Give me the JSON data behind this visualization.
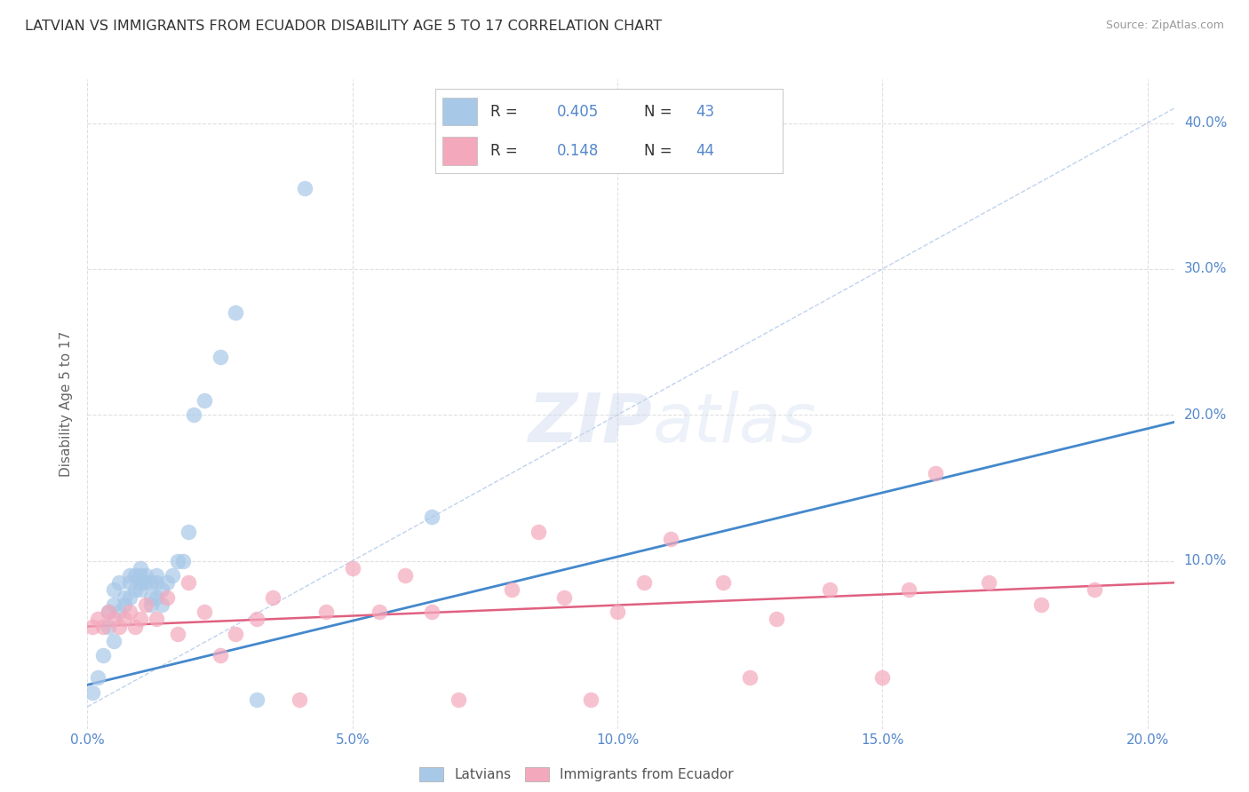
{
  "title": "LATVIAN VS IMMIGRANTS FROM ECUADOR DISABILITY AGE 5 TO 17 CORRELATION CHART",
  "source": "Source: ZipAtlas.com",
  "ylabel": "Disability Age 5 to 17",
  "xmin": 0.0,
  "xmax": 0.205,
  "ymin": -0.015,
  "ymax": 0.43,
  "blue_color": "#a8c8e8",
  "pink_color": "#f4a8bc",
  "blue_line_color": "#4488cc",
  "pink_line_color": "#e06080",
  "axis_color": "#5588cc",
  "blue_scatter_x": [
    0.001,
    0.002,
    0.003,
    0.004,
    0.004,
    0.005,
    0.005,
    0.005,
    0.006,
    0.006,
    0.007,
    0.007,
    0.008,
    0.008,
    0.008,
    0.009,
    0.009,
    0.01,
    0.01,
    0.01,
    0.01,
    0.011,
    0.011,
    0.012,
    0.012,
    0.012,
    0.013,
    0.013,
    0.013,
    0.014,
    0.014,
    0.015,
    0.016,
    0.017,
    0.018,
    0.019,
    0.02,
    0.022,
    0.025,
    0.028,
    0.032,
    0.041,
    0.065
  ],
  "blue_scatter_y": [
    0.01,
    0.02,
    0.035,
    0.055,
    0.065,
    0.045,
    0.07,
    0.08,
    0.065,
    0.085,
    0.07,
    0.075,
    0.075,
    0.085,
    0.09,
    0.08,
    0.09,
    0.08,
    0.085,
    0.09,
    0.095,
    0.085,
    0.09,
    0.07,
    0.075,
    0.085,
    0.075,
    0.085,
    0.09,
    0.07,
    0.08,
    0.085,
    0.09,
    0.1,
    0.1,
    0.12,
    0.2,
    0.21,
    0.24,
    0.27,
    0.005,
    0.355,
    0.13
  ],
  "pink_scatter_x": [
    0.001,
    0.002,
    0.003,
    0.004,
    0.005,
    0.006,
    0.007,
    0.008,
    0.009,
    0.01,
    0.011,
    0.013,
    0.015,
    0.017,
    0.019,
    0.022,
    0.025,
    0.028,
    0.032,
    0.035,
    0.04,
    0.045,
    0.05,
    0.055,
    0.06,
    0.065,
    0.07,
    0.08,
    0.085,
    0.09,
    0.095,
    0.1,
    0.105,
    0.11,
    0.12,
    0.125,
    0.13,
    0.14,
    0.15,
    0.155,
    0.16,
    0.17,
    0.18,
    0.19
  ],
  "pink_scatter_y": [
    0.055,
    0.06,
    0.055,
    0.065,
    0.06,
    0.055,
    0.06,
    0.065,
    0.055,
    0.06,
    0.07,
    0.06,
    0.075,
    0.05,
    0.085,
    0.065,
    0.035,
    0.05,
    0.06,
    0.075,
    0.005,
    0.065,
    0.095,
    0.065,
    0.09,
    0.065,
    0.005,
    0.08,
    0.12,
    0.075,
    0.005,
    0.065,
    0.085,
    0.115,
    0.085,
    0.02,
    0.06,
    0.08,
    0.02,
    0.08,
    0.16,
    0.085,
    0.07,
    0.08
  ],
  "blue_line_x": [
    0.0,
    0.205
  ],
  "blue_line_y": [
    0.015,
    0.195
  ],
  "pink_line_x": [
    0.0,
    0.205
  ],
  "pink_line_y": [
    0.055,
    0.085
  ],
  "dashed_line_x": [
    0.0,
    0.205
  ],
  "dashed_line_y": [
    0.0,
    0.41
  ],
  "watermark_zip": "ZIP",
  "watermark_atlas": "atlas",
  "background_color": "#ffffff",
  "grid_color": "#cccccc",
  "legend_R_blue": "R = ",
  "legend_val_blue": "0.405",
  "legend_N_blue": "  N = 43",
  "legend_R_pink": "R =  ",
  "legend_val_pink": "0.148",
  "legend_N_pink": "  N = 44"
}
